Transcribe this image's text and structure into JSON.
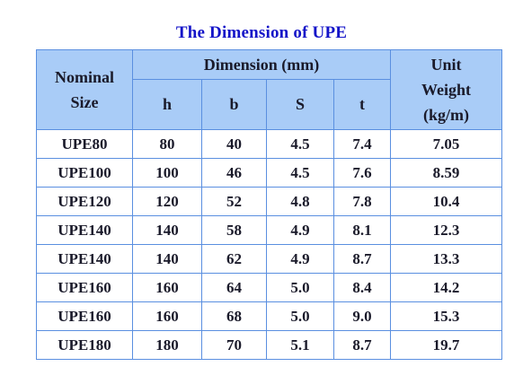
{
  "title": "The Dimension of UPE",
  "headers": {
    "nominal_line1": "Nominal",
    "nominal_line2": "Size",
    "dimension": "Dimension (mm)",
    "weight_line1": "Unit",
    "weight_line2": "Weight",
    "weight_line3": "(kg/m)",
    "h": "h",
    "b": "b",
    "s": "S",
    "t": "t"
  },
  "rows": [
    {
      "size": "UPE80",
      "h": "80",
      "b": "40",
      "s": "4.5",
      "t": "7.4",
      "weight": "7.05"
    },
    {
      "size": "UPE100",
      "h": "100",
      "b": "46",
      "s": "4.5",
      "t": "7.6",
      "weight": "8.59"
    },
    {
      "size": "UPE120",
      "h": "120",
      "b": "52",
      "s": "4.8",
      "t": "7.8",
      "weight": "10.4"
    },
    {
      "size": "UPE140",
      "h": "140",
      "b": "58",
      "s": "4.9",
      "t": "8.1",
      "weight": "12.3"
    },
    {
      "size": "UPE140",
      "h": "140",
      "b": "62",
      "s": "4.9",
      "t": "8.7",
      "weight": "13.3"
    },
    {
      "size": "UPE160",
      "h": "160",
      "b": "64",
      "s": "5.0",
      "t": "8.4",
      "weight": "14.2"
    },
    {
      "size": "UPE160",
      "h": "160",
      "b": "68",
      "s": "5.0",
      "t": "9.0",
      "weight": "15.3"
    },
    {
      "size": "UPE180",
      "h": "180",
      "b": "70",
      "s": "5.1",
      "t": "8.7",
      "weight": "19.7"
    }
  ]
}
